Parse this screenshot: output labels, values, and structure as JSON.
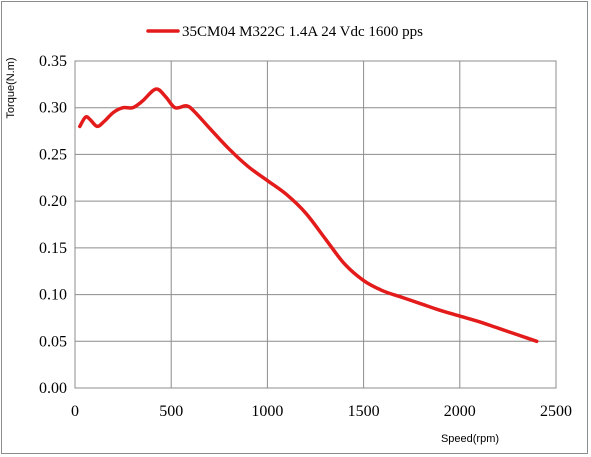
{
  "chart_data": {
    "type": "line",
    "legend": {
      "position": "top",
      "label": "35CM04 M322C 1.4A 24 Vdc  1600 pps"
    },
    "xlabel": "Speed(rpm)",
    "ylabel": "Torque(N.m)",
    "xlim": [
      0,
      2500
    ],
    "ylim": [
      0,
      0.35
    ],
    "xticks": [
      0,
      500,
      1000,
      1500,
      2000,
      2500
    ],
    "yticks": [
      0.0,
      0.05,
      0.1,
      0.15,
      0.2,
      0.25,
      0.3,
      0.35
    ],
    "xtick_labels": [
      "0",
      "500",
      "1000",
      "1500",
      "2000",
      "2500"
    ],
    "ytick_labels": [
      "0.00",
      "0.05",
      "0.10",
      "0.15",
      "0.20",
      "0.25",
      "0.30",
      "0.35"
    ],
    "grid": true,
    "series": [
      {
        "name": "35CM04 M322C 1.4A 24 Vdc  1600 pps",
        "color": "#e31b1b",
        "x": [
          25,
          55,
          80,
          115,
          150,
          200,
          250,
          300,
          350,
          420,
          470,
          520,
          580,
          620,
          700,
          800,
          900,
          1000,
          1100,
          1200,
          1300,
          1400,
          1500,
          1600,
          1700,
          1800,
          1900,
          2000,
          2100,
          2200,
          2300,
          2400
        ],
        "y": [
          0.28,
          0.29,
          0.287,
          0.28,
          0.285,
          0.295,
          0.3,
          0.3,
          0.307,
          0.32,
          0.312,
          0.3,
          0.302,
          0.296,
          0.278,
          0.256,
          0.237,
          0.222,
          0.207,
          0.187,
          0.16,
          0.133,
          0.115,
          0.104,
          0.097,
          0.09,
          0.083,
          0.077,
          0.071,
          0.064,
          0.057,
          0.05
        ]
      }
    ]
  }
}
